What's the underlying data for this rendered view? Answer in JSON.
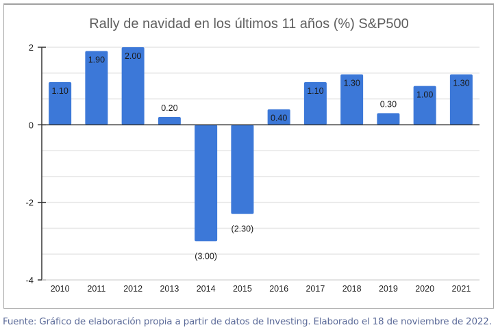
{
  "chart_data": {
    "type": "bar",
    "title": "Rally de navidad en los últimos 11 años (%) S&P500",
    "xlabel": "",
    "ylabel": "",
    "categories": [
      "2010",
      "2011",
      "2012",
      "2013",
      "2014",
      "2015",
      "2016",
      "2017",
      "2018",
      "2019",
      "2020",
      "2021"
    ],
    "values": [
      1.1,
      1.9,
      2.0,
      0.2,
      -3.0,
      -2.3,
      0.4,
      1.1,
      1.3,
      0.3,
      1.0,
      1.3
    ],
    "data_labels": [
      "1.10",
      "1.90",
      "2.00",
      "0.20",
      "(3.00)",
      "(2.30)",
      "0.40",
      "1.10",
      "1.30",
      "0.30",
      "1.00",
      "1.30"
    ],
    "ylim": [
      -4,
      2
    ],
    "y_ticks": [
      2,
      0,
      -2,
      -4
    ],
    "y_tick_labels": [
      "2",
      "0",
      "-2",
      "-4"
    ],
    "minor_gridlines_per_major": 2,
    "grid": true,
    "legend": "none",
    "bar_color": "#3c78d8"
  },
  "caption": "Fuente: Gráfico de elaboración propia a partir de datos de Investing. Elaborado el 18 de noviembre de 2022."
}
